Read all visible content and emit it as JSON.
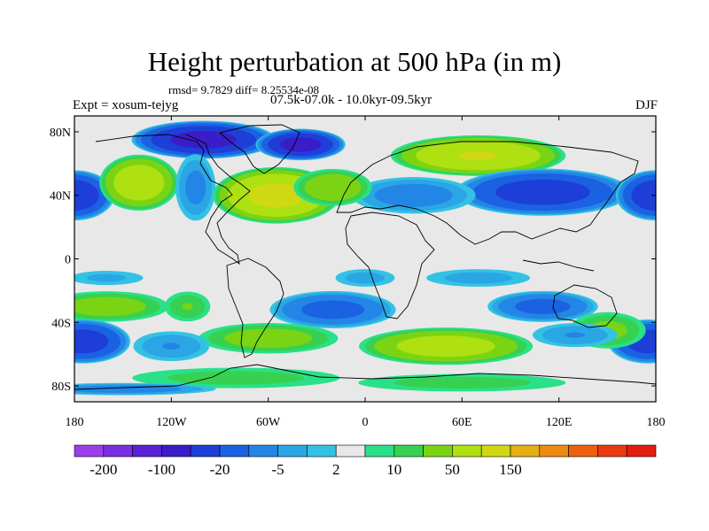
{
  "chart_data": {
    "type": "heatmap",
    "title": "Height perturbation at 500 hPa (in m)",
    "stats": "rmsd= 9.7829 diff= 8.25534e-08",
    "experiment": "Expt = xosum-tejyg",
    "period": "07.5k-07.0k - 10.0kyr-09.5kyr",
    "season": "DJF",
    "x_ticks": [
      {
        "lon": -180,
        "label": "180"
      },
      {
        "lon": -120,
        "label": "120W"
      },
      {
        "lon": -60,
        "label": "60W"
      },
      {
        "lon": 0,
        "label": "0"
      },
      {
        "lon": 60,
        "label": "60E"
      },
      {
        "lon": 120,
        "label": "120E"
      },
      {
        "lon": 180,
        "label": "180"
      }
    ],
    "y_ticks": [
      {
        "lat": 80,
        "label": "80N"
      },
      {
        "lat": 40,
        "label": "40N"
      },
      {
        "lat": 0,
        "label": "0"
      },
      {
        "lat": -40,
        "label": "40S"
      },
      {
        "lat": -80,
        "label": "80S"
      }
    ],
    "xlim": [
      -180,
      180
    ],
    "ylim": [
      -90,
      90
    ],
    "colorbar": {
      "colors": [
        "#9c3fe8",
        "#7a2fe0",
        "#5a22d4",
        "#3a1cc8",
        "#1e3ed8",
        "#1a62e2",
        "#2386e6",
        "#2aa6e4",
        "#34c2e4",
        "#e8e8e8",
        "#2ae088",
        "#38d050",
        "#7ad414",
        "#aee012",
        "#d0d814",
        "#e4b014",
        "#ec8a12",
        "#ee6010",
        "#ea3a10",
        "#e41e0e"
      ],
      "label_positions": [
        1,
        3,
        5,
        7,
        9,
        11,
        13,
        15
      ],
      "labels": [
        "-200",
        "-100",
        "-20",
        "-5",
        "2",
        "10",
        "50",
        "150"
      ]
    },
    "anomalies": [
      {
        "lon": -100,
        "lat": 75,
        "rx": 45,
        "ry": 12,
        "v": -60
      },
      {
        "lon": -40,
        "lat": 72,
        "rx": 28,
        "ry": 10,
        "v": -60
      },
      {
        "lon": 70,
        "lat": 65,
        "rx": 55,
        "ry": 13,
        "v": 30
      },
      {
        "lon": 110,
        "lat": 42,
        "rx": 55,
        "ry": 15,
        "v": -40
      },
      {
        "lon": 30,
        "lat": 40,
        "rx": 40,
        "ry": 12,
        "v": -12
      },
      {
        "lon": -180,
        "lat": 40,
        "rx": 25,
        "ry": 16,
        "v": -45
      },
      {
        "lon": 180,
        "lat": 40,
        "rx": 25,
        "ry": 16,
        "v": -45
      },
      {
        "lon": -140,
        "lat": 48,
        "rx": 25,
        "ry": 18,
        "v": 25
      },
      {
        "lon": -105,
        "lat": 45,
        "rx": 13,
        "ry": 22,
        "v": -10
      },
      {
        "lon": -55,
        "lat": 40,
        "rx": 40,
        "ry": 18,
        "v": 35
      },
      {
        "lon": -20,
        "lat": 45,
        "rx": 25,
        "ry": 12,
        "v": 15
      },
      {
        "lon": -160,
        "lat": -12,
        "rx": 25,
        "ry": 5,
        "v": -5
      },
      {
        "lon": 0,
        "lat": -12,
        "rx": 20,
        "ry": 6,
        "v": -6
      },
      {
        "lon": 70,
        "lat": -12,
        "rx": 35,
        "ry": 6,
        "v": -6
      },
      {
        "lon": -160,
        "lat": -30,
        "rx": 40,
        "ry": 10,
        "v": 12
      },
      {
        "lon": -110,
        "lat": -30,
        "rx": 15,
        "ry": 10,
        "v": 8
      },
      {
        "lon": -20,
        "lat": -32,
        "rx": 40,
        "ry": 12,
        "v": -20
      },
      {
        "lon": 110,
        "lat": -30,
        "rx": 35,
        "ry": 10,
        "v": -20
      },
      {
        "lon": -175,
        "lat": -52,
        "rx": 30,
        "ry": 14,
        "v": -40
      },
      {
        "lon": 175,
        "lat": -52,
        "rx": 25,
        "ry": 14,
        "v": -40
      },
      {
        "lon": -60,
        "lat": -50,
        "rx": 45,
        "ry": 10,
        "v": 12
      },
      {
        "lon": 50,
        "lat": -55,
        "rx": 55,
        "ry": 12,
        "v": 22
      },
      {
        "lon": 150,
        "lat": -45,
        "rx": 25,
        "ry": 12,
        "v": 10
      },
      {
        "lon": 130,
        "lat": -48,
        "rx": 28,
        "ry": 8,
        "v": -8
      },
      {
        "lon": -120,
        "lat": -55,
        "rx": 25,
        "ry": 10,
        "v": -8
      },
      {
        "lon": -80,
        "lat": -75,
        "rx": 70,
        "ry": 7,
        "v": 6
      },
      {
        "lon": 60,
        "lat": -78,
        "rx": 70,
        "ry": 6,
        "v": 6
      },
      {
        "lon": -150,
        "lat": -82,
        "rx": 60,
        "ry": 4,
        "v": -12
      }
    ]
  }
}
